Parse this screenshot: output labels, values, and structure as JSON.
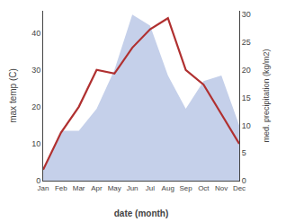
{
  "chart_data": {
    "type": "line",
    "xlabel": "date (month)",
    "ylabel": "max temp (C)",
    "y2label": "med. precipitation (kg/m2)",
    "categories": [
      "Jan",
      "Feb",
      "Mar",
      "Apr",
      "May",
      "Jun",
      "Jul",
      "Aug",
      "Sep",
      "Oct",
      "Nov",
      "Dec"
    ],
    "series": [
      {
        "type": "area",
        "axis": "y2",
        "color": "#c5d0ea",
        "values": [
          2,
          9,
          9,
          13,
          20,
          30,
          28,
          19,
          13,
          18,
          19,
          10
        ]
      },
      {
        "type": "line",
        "color": "#b03030",
        "values": [
          3,
          13,
          20,
          30,
          29,
          36,
          41,
          44,
          30,
          26,
          18,
          10
        ]
      }
    ],
    "ylim": [
      0,
      46
    ],
    "yticks": [
      0,
      10,
      20,
      30,
      40
    ],
    "y2lim": [
      0,
      30.7
    ],
    "y2ticks": [
      0,
      5,
      10,
      15,
      20,
      25,
      30
    ],
    "grid": false
  }
}
